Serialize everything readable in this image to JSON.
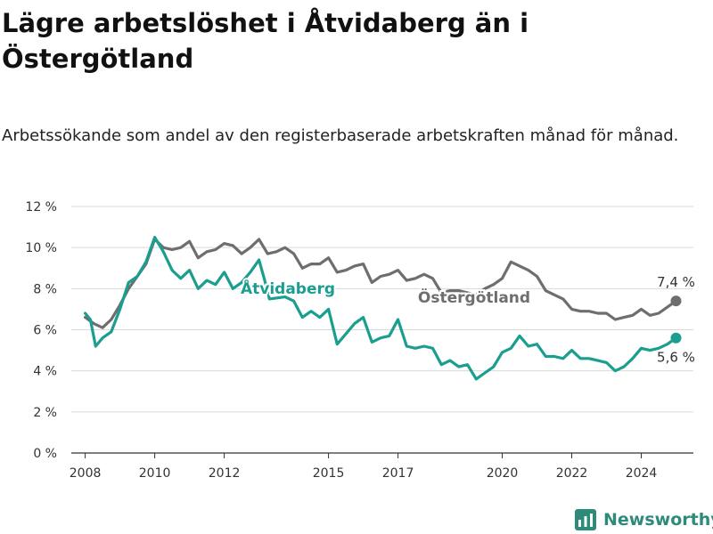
{
  "header": {
    "title": "Lägre arbetslöshet i Åtvidaberg än i Östergötland",
    "subtitle": "Arbetssökande som andel av den registerbaserade arbetskraften månad för månad."
  },
  "brand": {
    "name": "Newsworthy",
    "icon": "newsworthy-logo-icon",
    "color": "#2e8b7a"
  },
  "chart_data": {
    "type": "line",
    "ylim": [
      0,
      12
    ],
    "xlim": [
      2007.6,
      2025.5
    ],
    "y_ticks": [
      0,
      2,
      4,
      6,
      8,
      10,
      12
    ],
    "y_tick_labels": [
      "0 %",
      "2 %",
      "4 %",
      "6 %",
      "8 %",
      "10 %",
      "12 %"
    ],
    "x_ticks": [
      2008,
      2010,
      2012,
      2015,
      2017,
      2020,
      2022,
      2024
    ],
    "x_tick_labels": [
      "2008",
      "2010",
      "2012",
      "2015",
      "2017",
      "2020",
      "2022",
      "2024"
    ],
    "grid": true,
    "series": [
      {
        "name": "Östergötland",
        "color": "#6e6e6e",
        "end_value_label": "7,4 %",
        "points": [
          [
            2008.0,
            6.6
          ],
          [
            2008.25,
            6.3
          ],
          [
            2008.5,
            6.1
          ],
          [
            2008.75,
            6.5
          ],
          [
            2009.0,
            7.2
          ],
          [
            2009.25,
            8.0
          ],
          [
            2009.5,
            8.6
          ],
          [
            2009.75,
            9.2
          ],
          [
            2010.0,
            10.4
          ],
          [
            2010.25,
            10.0
          ],
          [
            2010.5,
            9.9
          ],
          [
            2010.75,
            10.0
          ],
          [
            2011.0,
            10.3
          ],
          [
            2011.25,
            9.5
          ],
          [
            2011.5,
            9.8
          ],
          [
            2011.75,
            9.9
          ],
          [
            2012.0,
            10.2
          ],
          [
            2012.25,
            10.1
          ],
          [
            2012.5,
            9.7
          ],
          [
            2012.75,
            10.0
          ],
          [
            2013.0,
            10.4
          ],
          [
            2013.25,
            9.7
          ],
          [
            2013.5,
            9.8
          ],
          [
            2013.75,
            10.0
          ],
          [
            2014.0,
            9.7
          ],
          [
            2014.25,
            9.0
          ],
          [
            2014.5,
            9.2
          ],
          [
            2014.75,
            9.2
          ],
          [
            2015.0,
            9.5
          ],
          [
            2015.25,
            8.8
          ],
          [
            2015.5,
            8.9
          ],
          [
            2015.75,
            9.1
          ],
          [
            2016.0,
            9.2
          ],
          [
            2016.25,
            8.3
          ],
          [
            2016.5,
            8.6
          ],
          [
            2016.75,
            8.7
          ],
          [
            2017.0,
            8.9
          ],
          [
            2017.25,
            8.4
          ],
          [
            2017.5,
            8.5
          ],
          [
            2017.75,
            8.7
          ],
          [
            2018.0,
            8.5
          ],
          [
            2018.25,
            7.8
          ],
          [
            2018.5,
            7.9
          ],
          [
            2018.75,
            7.9
          ],
          [
            2019.0,
            7.8
          ],
          [
            2019.25,
            7.7
          ],
          [
            2019.5,
            8.0
          ],
          [
            2019.75,
            8.2
          ],
          [
            2020.0,
            8.5
          ],
          [
            2020.25,
            9.3
          ],
          [
            2020.5,
            9.1
          ],
          [
            2020.75,
            8.9
          ],
          [
            2021.0,
            8.6
          ],
          [
            2021.25,
            7.9
          ],
          [
            2021.5,
            7.7
          ],
          [
            2021.75,
            7.5
          ],
          [
            2022.0,
            7.0
          ],
          [
            2022.25,
            6.9
          ],
          [
            2022.5,
            6.9
          ],
          [
            2022.75,
            6.8
          ],
          [
            2023.0,
            6.8
          ],
          [
            2023.25,
            6.5
          ],
          [
            2023.5,
            6.6
          ],
          [
            2023.75,
            6.7
          ],
          [
            2024.0,
            7.0
          ],
          [
            2024.25,
            6.7
          ],
          [
            2024.5,
            6.8
          ],
          [
            2024.75,
            7.1
          ],
          [
            2025.0,
            7.4
          ]
        ]
      },
      {
        "name": "Åtvidaberg",
        "color": "#1a9e8f",
        "end_value_label": "5,6 %",
        "points": [
          [
            2008.0,
            6.8
          ],
          [
            2008.15,
            6.5
          ],
          [
            2008.3,
            5.2
          ],
          [
            2008.5,
            5.6
          ],
          [
            2008.75,
            5.9
          ],
          [
            2009.0,
            7.0
          ],
          [
            2009.25,
            8.3
          ],
          [
            2009.5,
            8.6
          ],
          [
            2009.75,
            9.3
          ],
          [
            2010.0,
            10.5
          ],
          [
            2010.25,
            9.8
          ],
          [
            2010.5,
            8.9
          ],
          [
            2010.75,
            8.5
          ],
          [
            2011.0,
            8.9
          ],
          [
            2011.25,
            8.0
          ],
          [
            2011.5,
            8.4
          ],
          [
            2011.75,
            8.2
          ],
          [
            2012.0,
            8.8
          ],
          [
            2012.25,
            8.0
          ],
          [
            2012.5,
            8.3
          ],
          [
            2012.75,
            8.8
          ],
          [
            2013.0,
            9.4
          ],
          [
            2013.15,
            8.5
          ],
          [
            2013.3,
            7.5
          ],
          [
            2013.75,
            7.6
          ],
          [
            2014.0,
            7.4
          ],
          [
            2014.25,
            6.6
          ],
          [
            2014.5,
            6.9
          ],
          [
            2014.75,
            6.6
          ],
          [
            2015.0,
            7.0
          ],
          [
            2015.25,
            5.3
          ],
          [
            2015.5,
            5.8
          ],
          [
            2015.75,
            6.3
          ],
          [
            2016.0,
            6.6
          ],
          [
            2016.25,
            5.4
          ],
          [
            2016.5,
            5.6
          ],
          [
            2016.75,
            5.7
          ],
          [
            2017.0,
            6.5
          ],
          [
            2017.25,
            5.2
          ],
          [
            2017.5,
            5.1
          ],
          [
            2017.75,
            5.2
          ],
          [
            2018.0,
            5.1
          ],
          [
            2018.25,
            4.3
          ],
          [
            2018.5,
            4.5
          ],
          [
            2018.75,
            4.2
          ],
          [
            2019.0,
            4.3
          ],
          [
            2019.25,
            3.6
          ],
          [
            2019.5,
            3.9
          ],
          [
            2019.75,
            4.2
          ],
          [
            2020.0,
            4.9
          ],
          [
            2020.25,
            5.1
          ],
          [
            2020.5,
            5.7
          ],
          [
            2020.75,
            5.2
          ],
          [
            2021.0,
            5.3
          ],
          [
            2021.25,
            4.7
          ],
          [
            2021.5,
            4.7
          ],
          [
            2021.75,
            4.6
          ],
          [
            2022.0,
            5.0
          ],
          [
            2022.25,
            4.6
          ],
          [
            2022.5,
            4.6
          ],
          [
            2022.75,
            4.5
          ],
          [
            2023.0,
            4.4
          ],
          [
            2023.25,
            4.0
          ],
          [
            2023.5,
            4.2
          ],
          [
            2023.75,
            4.6
          ],
          [
            2024.0,
            5.1
          ],
          [
            2024.25,
            5.0
          ],
          [
            2024.5,
            5.1
          ],
          [
            2024.75,
            5.3
          ],
          [
            2025.0,
            5.6
          ]
        ]
      }
    ]
  }
}
